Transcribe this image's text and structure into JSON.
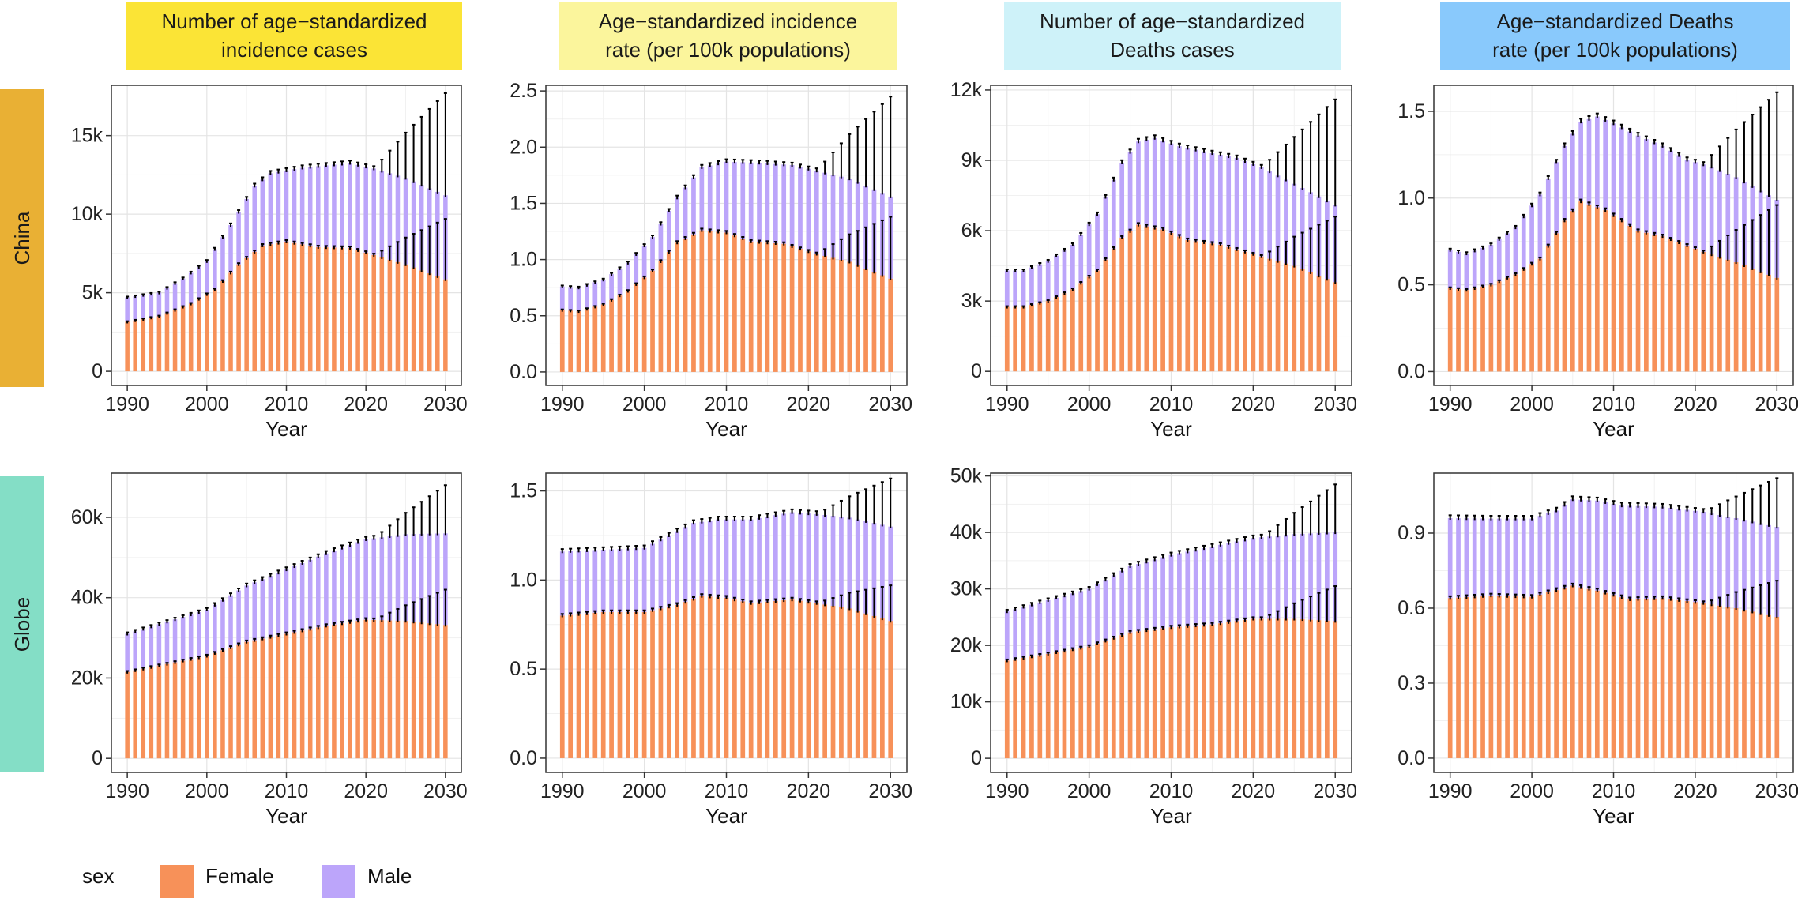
{
  "colors": {
    "female": "#F79159",
    "male": "#BCA5FA",
    "header_1": "#FBE436",
    "header_2": "#FBF59C",
    "header_3": "#CEF2F9",
    "header_4": "#89C9FC",
    "row_china": "#E9B034",
    "row_globe": "#84DEC6"
  },
  "column_headers": [
    [
      "Number of age−standardized",
      "incidence cases"
    ],
    [
      "Age−standardized incidence",
      "rate (per 100k populations)"
    ],
    [
      "Number of age−standardized",
      "Deaths cases"
    ],
    [
      "Age−standardized Deaths",
      "rate (per 100k populations)"
    ]
  ],
  "row_labels": [
    "China",
    "Globe"
  ],
  "legend": {
    "title": "sex",
    "items": [
      "Female",
      "Male"
    ]
  },
  "chart_data": [
    {
      "type": "bar",
      "stacked": true,
      "region": "China",
      "metric": "Number of age-standardized incidence cases",
      "title": "Number of age−standardized incidence cases",
      "xlabel": "Year",
      "ylabel": "",
      "x_range": [
        1990,
        2030
      ],
      "x_ticks": [
        1990,
        2000,
        2010,
        2020,
        2030
      ],
      "x_tick_labels": [
        "1990",
        "2000",
        "2010",
        "2020",
        "2030"
      ],
      "ylim": [
        -900,
        18200
      ],
      "y_ticks": [
        0,
        5000,
        10000,
        15000
      ],
      "y_tick_labels": [
        "0",
        "5k",
        "10k",
        "15k"
      ],
      "forecast_from": 2021,
      "error_bars": "upper bound shown on Female and Total; widens after 2021",
      "female_anchors": [
        [
          1990,
          3150
        ],
        [
          1994,
          3500
        ],
        [
          1998,
          4300
        ],
        [
          2001,
          5200
        ],
        [
          2004,
          6800
        ],
        [
          2007,
          8000
        ],
        [
          2010,
          8250
        ],
        [
          2014,
          7900
        ],
        [
          2018,
          7850
        ],
        [
          2021,
          7400
        ],
        [
          2025,
          6800
        ],
        [
          2030,
          5850
        ]
      ],
      "total_anchors": [
        [
          1990,
          4700
        ],
        [
          1994,
          5000
        ],
        [
          1997,
          5900
        ],
        [
          2000,
          7000
        ],
        [
          2003,
          9300
        ],
        [
          2006,
          11800
        ],
        [
          2008,
          12600
        ],
        [
          2012,
          12950
        ],
        [
          2018,
          13250
        ],
        [
          2021,
          12900
        ],
        [
          2025,
          12300
        ],
        [
          2030,
          11200
        ]
      ],
      "female_upper_end": 9700,
      "total_upper_end": 17700
    },
    {
      "type": "bar",
      "stacked": true,
      "region": "China",
      "metric": "Age-standardized incidence rate (per 100k populations)",
      "title": "Age−standardized incidence rate (per 100k populations)",
      "xlabel": "Year",
      "ylabel": "",
      "x_range": [
        1990,
        2030
      ],
      "x_ticks": [
        1990,
        2000,
        2010,
        2020,
        2030
      ],
      "x_tick_labels": [
        "1990",
        "2000",
        "2010",
        "2020",
        "2030"
      ],
      "ylim": [
        -0.12,
        2.55
      ],
      "y_ticks": [
        0,
        0.5,
        1.0,
        1.5,
        2.0,
        2.5
      ],
      "y_tick_labels": [
        "0.0",
        "0.5",
        "1.0",
        "1.5",
        "2.0",
        "2.5"
      ],
      "forecast_from": 2021,
      "error_bars": "upper bound shown on Female and Total; widens after 2021",
      "female_anchors": [
        [
          1990,
          0.55
        ],
        [
          1992,
          0.54
        ],
        [
          1995,
          0.6
        ],
        [
          1998,
          0.72
        ],
        [
          2001,
          0.9
        ],
        [
          2004,
          1.15
        ],
        [
          2007,
          1.26
        ],
        [
          2010,
          1.24
        ],
        [
          2013,
          1.16
        ],
        [
          2017,
          1.14
        ],
        [
          2021,
          1.05
        ],
        [
          2025,
          0.98
        ],
        [
          2030,
          0.83
        ]
      ],
      "total_anchors": [
        [
          1990,
          0.76
        ],
        [
          1992,
          0.75
        ],
        [
          1995,
          0.82
        ],
        [
          1998,
          0.97
        ],
        [
          2001,
          1.2
        ],
        [
          2004,
          1.55
        ],
        [
          2007,
          1.82
        ],
        [
          2010,
          1.87
        ],
        [
          2014,
          1.86
        ],
        [
          2018,
          1.84
        ],
        [
          2021,
          1.79
        ],
        [
          2025,
          1.72
        ],
        [
          2030,
          1.56
        ]
      ],
      "female_upper_end": 1.38,
      "total_upper_end": 2.45
    },
    {
      "type": "bar",
      "stacked": true,
      "region": "China",
      "metric": "Number of age-standardized Deaths cases",
      "title": "Number of age−standardized Deaths cases",
      "xlabel": "Year",
      "ylabel": "",
      "x_range": [
        1990,
        2030
      ],
      "x_ticks": [
        1990,
        2000,
        2010,
        2020,
        2030
      ],
      "x_tick_labels": [
        "1990",
        "2000",
        "2010",
        "2020",
        "2030"
      ],
      "ylim": [
        -600,
        12200
      ],
      "y_ticks": [
        0,
        3000,
        6000,
        9000,
        12000
      ],
      "y_tick_labels": [
        "0",
        "3k",
        "6k",
        "9k",
        "12k"
      ],
      "forecast_from": 2021,
      "error_bars": "upper bound shown on Female and Total; widens after 2021",
      "female_anchors": [
        [
          1990,
          2750
        ],
        [
          1992,
          2750
        ],
        [
          1995,
          3000
        ],
        [
          1998,
          3500
        ],
        [
          2001,
          4300
        ],
        [
          2004,
          5700
        ],
        [
          2006,
          6250
        ],
        [
          2009,
          6050
        ],
        [
          2012,
          5600
        ],
        [
          2016,
          5400
        ],
        [
          2021,
          4900
        ],
        [
          2025,
          4500
        ],
        [
          2030,
          3800
        ]
      ],
      "total_anchors": [
        [
          1990,
          4300
        ],
        [
          1992,
          4300
        ],
        [
          1995,
          4700
        ],
        [
          1998,
          5400
        ],
        [
          2001,
          6700
        ],
        [
          2004,
          8900
        ],
        [
          2006,
          9800
        ],
        [
          2008,
          9950
        ],
        [
          2011,
          9600
        ],
        [
          2015,
          9300
        ],
        [
          2018,
          9100
        ],
        [
          2021,
          8700
        ],
        [
          2025,
          8000
        ],
        [
          2030,
          7100
        ]
      ],
      "female_upper_end": 6600,
      "total_upper_end": 11600
    },
    {
      "type": "bar",
      "stacked": true,
      "region": "China",
      "metric": "Age-standardized Deaths rate (per 100k populations)",
      "title": "Age−standardized Deaths rate (per 100k populations)",
      "xlabel": "Year",
      "ylabel": "",
      "x_range": [
        1990,
        2030
      ],
      "x_ticks": [
        1990,
        2000,
        2010,
        2020,
        2030
      ],
      "x_tick_labels": [
        "1990",
        "2000",
        "2010",
        "2020",
        "2030"
      ],
      "ylim": [
        -0.08,
        1.65
      ],
      "y_ticks": [
        0,
        0.5,
        1.0,
        1.5
      ],
      "y_tick_labels": [
        "0.0",
        "0.5",
        "1.0",
        "1.5"
      ],
      "forecast_from": 2021,
      "error_bars": "upper bound shown on Female and Total; widens after 2021",
      "female_anchors": [
        [
          1990,
          0.48
        ],
        [
          1992,
          0.47
        ],
        [
          1995,
          0.5
        ],
        [
          1998,
          0.56
        ],
        [
          2001,
          0.65
        ],
        [
          2004,
          0.87
        ],
        [
          2006,
          0.98
        ],
        [
          2009,
          0.93
        ],
        [
          2013,
          0.81
        ],
        [
          2016,
          0.78
        ],
        [
          2021,
          0.69
        ],
        [
          2025,
          0.63
        ],
        [
          2030,
          0.54
        ]
      ],
      "total_anchors": [
        [
          1990,
          0.7
        ],
        [
          1992,
          0.68
        ],
        [
          1995,
          0.73
        ],
        [
          1998,
          0.83
        ],
        [
          2001,
          1.02
        ],
        [
          2004,
          1.3
        ],
        [
          2006,
          1.44
        ],
        [
          2008,
          1.47
        ],
        [
          2010,
          1.43
        ],
        [
          2013,
          1.36
        ],
        [
          2016,
          1.3
        ],
        [
          2019,
          1.22
        ],
        [
          2022,
          1.18
        ],
        [
          2025,
          1.12
        ],
        [
          2030,
          0.99
        ]
      ],
      "female_upper_end": 0.96,
      "total_upper_end": 1.61
    },
    {
      "type": "bar",
      "stacked": true,
      "region": "Globe",
      "metric": "Number of age-standardized incidence cases",
      "title": "Number of age−standardized incidence cases",
      "xlabel": "Year",
      "ylabel": "",
      "x_range": [
        1990,
        2030
      ],
      "x_ticks": [
        1990,
        2000,
        2010,
        2020,
        2030
      ],
      "x_tick_labels": [
        "1990",
        "2000",
        "2010",
        "2020",
        "2030"
      ],
      "ylim": [
        -3500,
        71000
      ],
      "y_ticks": [
        0,
        20000,
        40000,
        60000
      ],
      "y_tick_labels": [
        "0",
        "20k",
        "40k",
        "60k"
      ],
      "forecast_from": 2021,
      "error_bars": "upper bound shown on Female and Total; widens after 2021",
      "female_anchors": [
        [
          1990,
          21500
        ],
        [
          1995,
          23500
        ],
        [
          2000,
          25500
        ],
        [
          2005,
          29000
        ],
        [
          2010,
          31000
        ],
        [
          2015,
          33000
        ],
        [
          2020,
          34500
        ],
        [
          2025,
          34200
        ],
        [
          2030,
          33200
        ]
      ],
      "total_anchors": [
        [
          1990,
          31000
        ],
        [
          1995,
          34000
        ],
        [
          2000,
          37000
        ],
        [
          2005,
          43000
        ],
        [
          2010,
          47000
        ],
        [
          2015,
          51000
        ],
        [
          2020,
          54500
        ],
        [
          2025,
          55800
        ],
        [
          2030,
          56000
        ]
      ],
      "female_upper_end": 42000,
      "total_upper_end": 68000
    },
    {
      "type": "bar",
      "stacked": true,
      "region": "Globe",
      "metric": "Age-standardized incidence rate (per 100k populations)",
      "title": "Age−standardized incidence rate (per 100k populations)",
      "xlabel": "Year",
      "ylabel": "",
      "x_range": [
        1990,
        2030
      ],
      "x_ticks": [
        1990,
        2000,
        2010,
        2020,
        2030
      ],
      "x_tick_labels": [
        "1990",
        "2000",
        "2010",
        "2020",
        "2030"
      ],
      "ylim": [
        -0.08,
        1.6
      ],
      "y_ticks": [
        0,
        0.5,
        1.0,
        1.5
      ],
      "y_tick_labels": [
        "0.0",
        "0.5",
        "1.0",
        "1.5"
      ],
      "forecast_from": 2021,
      "error_bars": "upper bound shown on Female and Total; widens after 2021",
      "female_anchors": [
        [
          1990,
          0.8
        ],
        [
          1995,
          0.82
        ],
        [
          2000,
          0.82
        ],
        [
          2004,
          0.86
        ],
        [
          2007,
          0.91
        ],
        [
          2010,
          0.9
        ],
        [
          2013,
          0.87
        ],
        [
          2018,
          0.89
        ],
        [
          2021,
          0.87
        ],
        [
          2025,
          0.84
        ],
        [
          2030,
          0.77
        ]
      ],
      "total_anchors": [
        [
          1990,
          1.16
        ],
        [
          1995,
          1.17
        ],
        [
          2000,
          1.18
        ],
        [
          2003,
          1.25
        ],
        [
          2006,
          1.32
        ],
        [
          2009,
          1.34
        ],
        [
          2013,
          1.34
        ],
        [
          2018,
          1.38
        ],
        [
          2021,
          1.37
        ],
        [
          2025,
          1.35
        ],
        [
          2030,
          1.3
        ]
      ],
      "female_upper_end": 0.97,
      "total_upper_end": 1.57
    },
    {
      "type": "bar",
      "stacked": true,
      "region": "Globe",
      "metric": "Number of age-standardized Deaths cases",
      "title": "Number of age−standardized Deaths cases",
      "xlabel": "Year",
      "ylabel": "",
      "x_range": [
        1990,
        2030
      ],
      "x_ticks": [
        1990,
        2000,
        2010,
        2020,
        2030
      ],
      "x_tick_labels": [
        "1990",
        "2000",
        "2010",
        "2020",
        "2030"
      ],
      "ylim": [
        -2500,
        50500
      ],
      "y_ticks": [
        0,
        10000,
        20000,
        30000,
        40000,
        50000
      ],
      "y_tick_labels": [
        "0",
        "10k",
        "20k",
        "30k",
        "40k",
        "50k"
      ],
      "forecast_from": 2021,
      "error_bars": "upper bound shown on Female and Total; widens after 2021",
      "female_anchors": [
        [
          1990,
          17300
        ],
        [
          1995,
          18500
        ],
        [
          2000,
          19800
        ],
        [
          2005,
          22300
        ],
        [
          2010,
          23200
        ],
        [
          2015,
          23700
        ],
        [
          2020,
          24700
        ],
        [
          2025,
          24700
        ],
        [
          2030,
          24300
        ]
      ],
      "total_anchors": [
        [
          1990,
          26000
        ],
        [
          1995,
          28000
        ],
        [
          2000,
          30000
        ],
        [
          2005,
          34000
        ],
        [
          2010,
          36000
        ],
        [
          2015,
          37500
        ],
        [
          2020,
          39000
        ],
        [
          2025,
          39700
        ],
        [
          2030,
          40000
        ]
      ],
      "female_upper_end": 30500,
      "total_upper_end": 48500
    },
    {
      "type": "bar",
      "stacked": true,
      "region": "Globe",
      "metric": "Age-standardized Deaths rate (per 100k populations)",
      "title": "Age−standardized Deaths rate (per 100k populations)",
      "xlabel": "Year",
      "ylabel": "",
      "x_range": [
        1990,
        2030
      ],
      "x_ticks": [
        1990,
        2000,
        2010,
        2020,
        2030
      ],
      "x_tick_labels": [
        "1990",
        "2000",
        "2010",
        "2020",
        "2030"
      ],
      "ylim": [
        -0.057,
        1.14
      ],
      "y_ticks": [
        0,
        0.3,
        0.6,
        0.9
      ],
      "y_tick_labels": [
        "0.0",
        "0.3",
        "0.6",
        "0.9"
      ],
      "forecast_from": 2021,
      "error_bars": "upper bound shown on Female and Total; widens after 2021",
      "female_anchors": [
        [
          1990,
          0.64
        ],
        [
          1995,
          0.65
        ],
        [
          2000,
          0.645
        ],
        [
          2005,
          0.69
        ],
        [
          2008,
          0.67
        ],
        [
          2012,
          0.635
        ],
        [
          2016,
          0.64
        ],
        [
          2021,
          0.62
        ],
        [
          2025,
          0.6
        ],
        [
          2030,
          0.565
        ]
      ],
      "total_anchors": [
        [
          1990,
          0.96
        ],
        [
          1995,
          0.958
        ],
        [
          2000,
          0.958
        ],
        [
          2003,
          0.99
        ],
        [
          2005,
          1.035
        ],
        [
          2008,
          1.03
        ],
        [
          2011,
          1.01
        ],
        [
          2016,
          1.005
        ],
        [
          2021,
          0.985
        ],
        [
          2025,
          0.96
        ],
        [
          2030,
          0.925
        ]
      ],
      "female_upper_end": 0.71,
      "total_upper_end": 1.12
    }
  ]
}
